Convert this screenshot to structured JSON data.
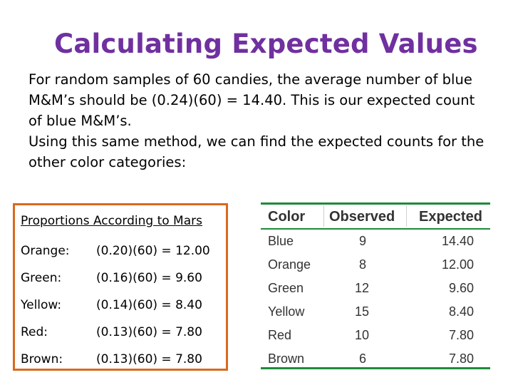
{
  "title": "Calculating Expected Values",
  "paragraphs": [
    "For random samples of 60 candies, the average number of blue M&M’s should be (0.24)(60) = 14.40. This is our expected count of blue M&M’s.",
    "Using this same method, we can find the expected counts for the other color categories:"
  ],
  "proportions_box": {
    "heading": "Proportions According to Mars",
    "rows": [
      {
        "color": "Orange:",
        "calc": "(0.20)(60) = 12.00"
      },
      {
        "color": "Green:",
        "calc": "(0.16)(60) = 9.60"
      },
      {
        "color": "Yellow:",
        "calc": "(0.14)(60) = 8.40"
      },
      {
        "color": "Red:",
        "calc": "(0.13)(60) = 7.80"
      },
      {
        "color": "Brown:",
        "calc": "(0.13)(60) = 7.80"
      }
    ]
  },
  "table": {
    "headers": [
      "Color",
      "Observed",
      "Expected"
    ],
    "rows": [
      {
        "color": "Blue",
        "observed": "9",
        "expected": "14.40"
      },
      {
        "color": "Orange",
        "observed": "8",
        "expected": "12.00"
      },
      {
        "color": "Green",
        "observed": "12",
        "expected": "9.60"
      },
      {
        "color": "Yellow",
        "observed": "15",
        "expected": "8.40"
      },
      {
        "color": "Red",
        "observed": "10",
        "expected": "7.80"
      },
      {
        "color": "Brown",
        "observed": "6",
        "expected": "7.80"
      }
    ]
  },
  "colors": {
    "title": "#7030a0",
    "box_border": "#d9691e",
    "table_rule": "#1f8a3c"
  }
}
